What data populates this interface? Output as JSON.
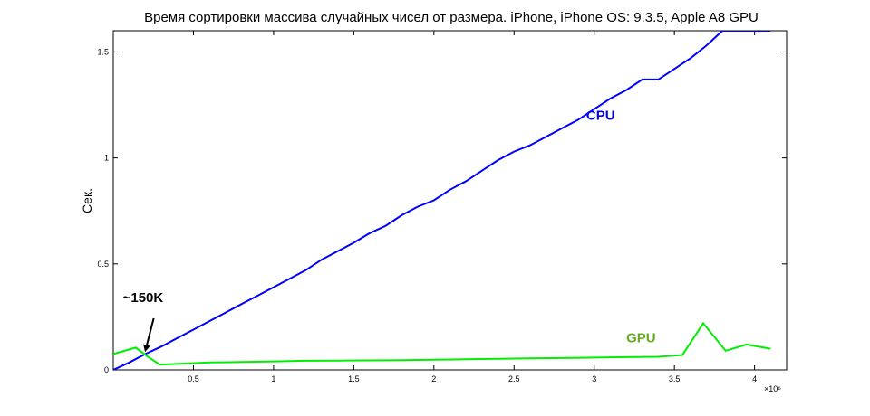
{
  "chart_data": {
    "type": "line",
    "title": "Время сортировки массива случайных чисел от размера. iPhone, iPhone OS: 9.3.5, Apple A8 GPU",
    "xlabel": "",
    "ylabel": "Сек.",
    "x_multiplier_label": "×10⁶",
    "xlim": [
      0,
      4.2
    ],
    "ylim": [
      0,
      1.6
    ],
    "x_ticks": [
      0.5,
      1,
      1.5,
      2,
      2.5,
      3,
      3.5,
      4
    ],
    "x_tick_labels": [
      "0.5",
      "1",
      "1.5",
      "2",
      "2.5",
      "3",
      "3.5",
      "4"
    ],
    "y_ticks": [
      0,
      0.5,
      1,
      1.5
    ],
    "y_tick_labels": [
      "0",
      "0.5",
      "1",
      "1.5"
    ],
    "grid": false,
    "series": [
      {
        "name": "CPU",
        "color": "#0000ff",
        "x": [
          0,
          0.1,
          0.2,
          0.3,
          0.4,
          0.5,
          0.6,
          0.7,
          0.8,
          0.9,
          1.0,
          1.1,
          1.2,
          1.3,
          1.4,
          1.5,
          1.6,
          1.7,
          1.8,
          1.9,
          2.0,
          2.1,
          2.2,
          2.3,
          2.4,
          2.5,
          2.6,
          2.7,
          2.8,
          2.9,
          3.0,
          3.1,
          3.2,
          3.3,
          3.4,
          3.5,
          3.6,
          3.7,
          3.8,
          3.9,
          4.0,
          4.1
        ],
        "y": [
          0.0,
          0.035,
          0.075,
          0.11,
          0.15,
          0.19,
          0.23,
          0.27,
          0.31,
          0.35,
          0.39,
          0.43,
          0.47,
          0.52,
          0.56,
          0.6,
          0.645,
          0.68,
          0.73,
          0.77,
          0.8,
          0.85,
          0.89,
          0.94,
          0.99,
          1.03,
          1.06,
          1.1,
          1.14,
          1.18,
          1.23,
          1.28,
          1.32,
          1.37,
          1.37,
          1.42,
          1.47,
          1.53,
          1.6,
          1.6,
          1.6,
          1.6
        ]
      },
      {
        "name": "GPU",
        "color": "#00ee00",
        "x": [
          0,
          0.14,
          0.22,
          0.29,
          0.45,
          0.6,
          0.8,
          1.0,
          1.2,
          1.4,
          1.6,
          1.8,
          2.0,
          2.2,
          2.4,
          2.6,
          2.8,
          3.0,
          3.2,
          3.4,
          3.55,
          3.68,
          3.82,
          3.95,
          4.1
        ],
        "y": [
          0.075,
          0.105,
          0.06,
          0.025,
          0.03,
          0.035,
          0.037,
          0.04,
          0.043,
          0.044,
          0.045,
          0.046,
          0.048,
          0.05,
          0.052,
          0.054,
          0.056,
          0.058,
          0.06,
          0.062,
          0.07,
          0.22,
          0.09,
          0.12,
          0.1
        ]
      }
    ],
    "annotations": [
      {
        "text": "CPU",
        "color": "#0000ee",
        "x": 2.95,
        "y": 1.18
      },
      {
        "text": "GPU",
        "color": "#66aa22",
        "x": 3.2,
        "y": 0.13
      },
      {
        "text": "~150K",
        "color": "#000000",
        "x": 0.06,
        "y": 0.32,
        "arrow_to": [
          0.15,
          0.05
        ]
      }
    ]
  }
}
